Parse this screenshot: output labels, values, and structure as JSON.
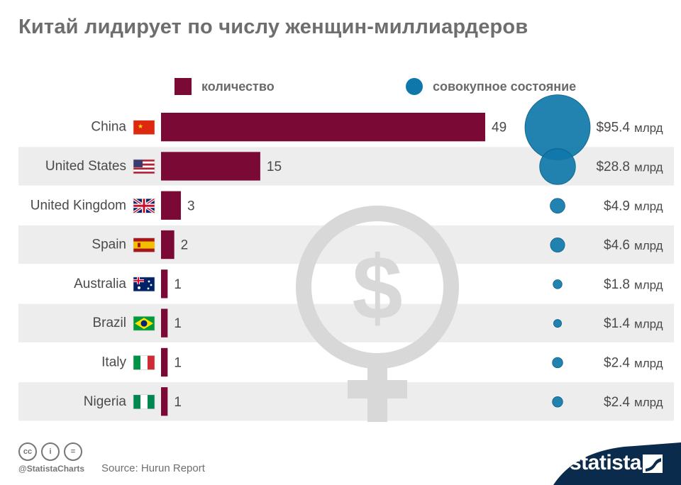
{
  "title": "Китай лидирует по числу  женщин-миллиардеров",
  "legend": {
    "count": "количество",
    "wealth": "совокупное состояние"
  },
  "colors": {
    "bar": "#7a0a35",
    "bubble": "#0f77a9",
    "row_band": "#ededed",
    "watermark": "#d8d8d8"
  },
  "chart_data": {
    "type": "bar",
    "orientation": "horizontal",
    "categories": [
      "China",
      "United States",
      "United Kingdom",
      "Spain",
      "Australia",
      "Brazil",
      "Italy",
      "Nigeria"
    ],
    "flag_icons": [
      "china-flag-icon",
      "united-states-flag-icon",
      "united-kingdom-flag-icon",
      "spain-flag-icon",
      "australia-flag-icon",
      "brazil-flag-icon",
      "italy-flag-icon",
      "nigeria-flag-icon"
    ],
    "series": [
      {
        "name": "количество",
        "values": [
          49,
          15,
          3,
          2,
          1,
          1,
          1,
          1
        ]
      },
      {
        "name": "совокупное состояние",
        "values": [
          95.4,
          28.8,
          4.9,
          4.6,
          1.8,
          1.4,
          2.4,
          2.4
        ]
      }
    ],
    "count_labels": [
      "49",
      "15",
      "3",
      "2",
      "1",
      "1",
      "1",
      "1"
    ],
    "wealth_labels": [
      "$95.4",
      "$28.8",
      "$4.9",
      "$4.6",
      "$1.8",
      "$1.4",
      "$2.4",
      "$2.4"
    ],
    "wealth_unit": "млрд"
  },
  "footer": {
    "handle": "@StatistaCharts",
    "source": "Source: Hurun Report",
    "brand": "statista"
  }
}
